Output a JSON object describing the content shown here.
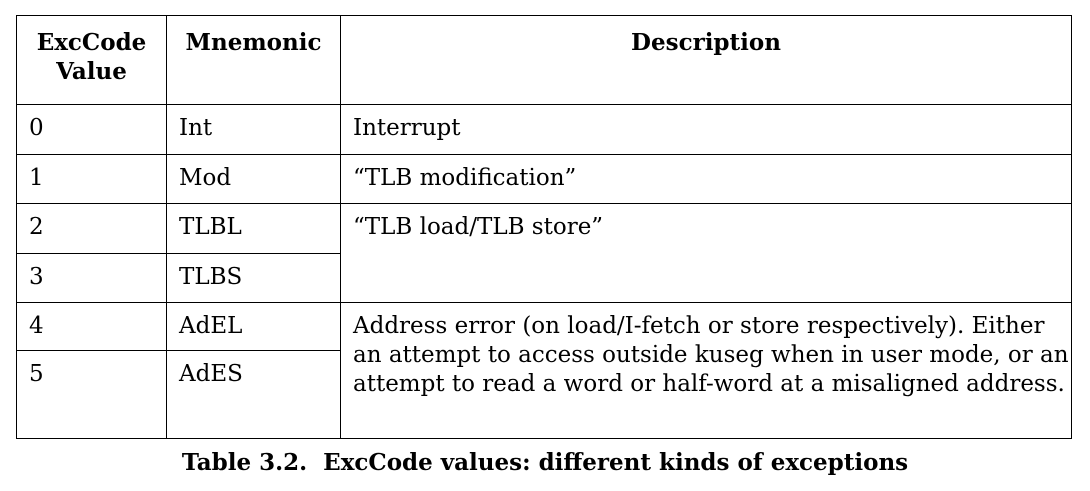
{
  "table": {
    "headers": {
      "code_line1": "ExcCode",
      "code_line2": "Value",
      "mnemonic": "Mnemonic",
      "description": "Description"
    },
    "rows": [
      {
        "code": "0",
        "mnemonic": "Int",
        "description": "Interrupt"
      },
      {
        "code": "1",
        "mnemonic": "Mod",
        "description": "“TLB modification”"
      },
      {
        "code": "2",
        "mnemonic": "TLBL",
        "description": "“TLB load/TLB store”"
      },
      {
        "code": "3",
        "mnemonic": "TLBS"
      },
      {
        "code": "4",
        "mnemonic": "AdEL",
        "description": "Address error (on load/I-fetch or store respectively). Either an attempt to access outside kuseg when in user mode, or an attempt to read a word or half-word at a misaligned address."
      },
      {
        "code": "5",
        "mnemonic": "AdES"
      }
    ]
  },
  "caption": "Table 3.2.  ExcCode values: different kinds of exceptions"
}
